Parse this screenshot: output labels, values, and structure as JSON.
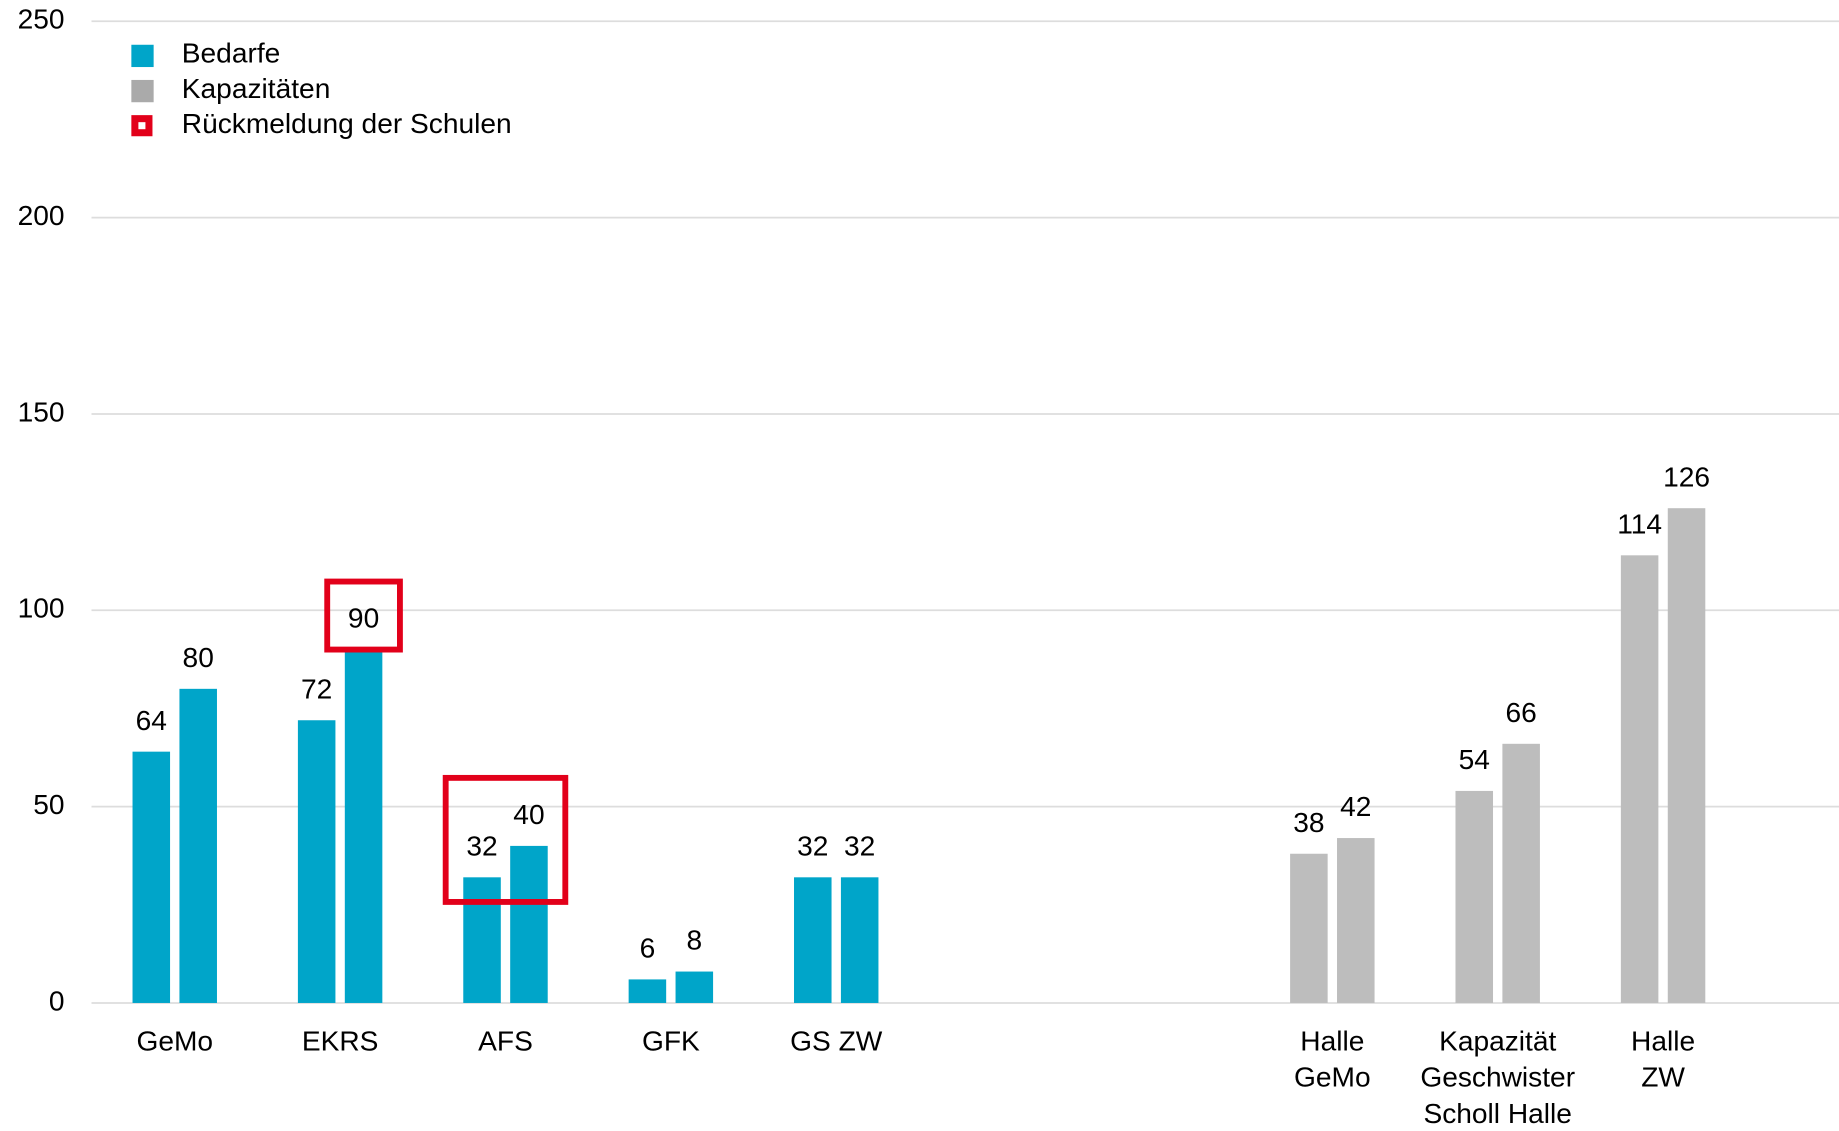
{
  "chart_data": {
    "type": "bar",
    "categories": [
      [
        "GeMo"
      ],
      [
        "EKRS"
      ],
      [
        "AFS"
      ],
      [
        "GFK"
      ],
      [
        "GS ZW"
      ],
      null,
      null,
      [
        "Halle",
        "GeMo"
      ],
      [
        "Kapazität",
        "Geschwister",
        "Scholl Halle"
      ],
      [
        "Halle",
        "ZW"
      ]
    ],
    "series": [
      {
        "values": [
          64,
          72,
          32,
          6,
          32,
          null,
          null,
          38,
          54,
          114
        ]
      },
      {
        "values": [
          80,
          90,
          40,
          8,
          32,
          null,
          null,
          42,
          66,
          126
        ]
      }
    ],
    "category_colors": [
      "#00a5c9",
      "#00a5c9",
      "#00a5c9",
      "#00a5c9",
      "#00a5c9",
      null,
      null,
      "#bdbdbd",
      "#bdbdbd",
      "#bdbdbd"
    ],
    "legend": [
      {
        "name": "Bedarfe",
        "color": "#00a5c9"
      },
      {
        "name": "Kapazitäten",
        "color": "#aaaaaa"
      },
      {
        "name": "Rückmeldung der Schulen",
        "color": "#e2001a"
      }
    ],
    "legend_position": "upper left",
    "highlights": [
      {
        "category": 1,
        "series": [
          1
        ]
      },
      {
        "category": 2,
        "series": [
          0,
          1
        ]
      }
    ],
    "highlight_color": "#e2001a",
    "ylim": [
      0,
      250
    ],
    "yticks": [
      0,
      50,
      100,
      150,
      200,
      250
    ],
    "grid": true
  }
}
